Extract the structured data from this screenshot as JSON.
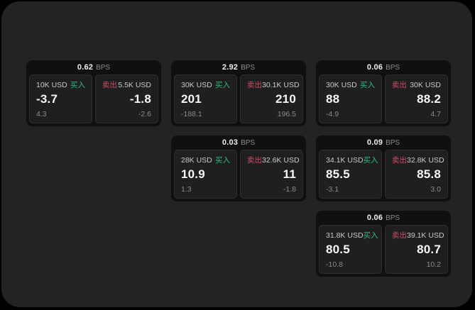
{
  "labels": {
    "bps_unit": "BPS",
    "buy": "买入",
    "sell": "卖出"
  },
  "colors": {
    "page_background": "#232323",
    "card_background": "#101010",
    "panel_background": "#1f1f1f",
    "buy_green": "#2ebd7c",
    "sell_red": "#d14b63"
  },
  "cards": [
    {
      "bps": "0.62",
      "buy": {
        "size": "10K USD",
        "value": "-3.7",
        "sub": "4.3"
      },
      "sell": {
        "size": "5.5K USD",
        "value": "-1.8",
        "sub": "-2.6"
      }
    },
    {
      "bps": "2.92",
      "buy": {
        "size": "30K USD",
        "value": "201",
        "sub": "-188.1"
      },
      "sell": {
        "size": "30.1K USD",
        "value": "210",
        "sub": "196.5"
      }
    },
    {
      "bps": "0.06",
      "buy": {
        "size": "30K USD",
        "value": "88",
        "sub": "-4.9"
      },
      "sell": {
        "size": "30K USD",
        "value": "88.2",
        "sub": "4.7"
      }
    },
    {
      "bps": "0.03",
      "buy": {
        "size": "28K USD",
        "value": "10.9",
        "sub": "1.3"
      },
      "sell": {
        "size": "32.6K USD",
        "value": "11",
        "sub": "-1.8"
      }
    },
    {
      "bps": "0.09",
      "buy": {
        "size": "34.1K USD",
        "value": "85.5",
        "sub": "-3.1"
      },
      "sell": {
        "size": "32.8K USD",
        "value": "85.8",
        "sub": "3.0"
      }
    },
    {
      "bps": "0.06",
      "buy": {
        "size": "31.8K USD",
        "value": "80.5",
        "sub": "-10.8"
      },
      "sell": {
        "size": "39.1K USD",
        "value": "80.7",
        "sub": "10.2"
      }
    }
  ]
}
